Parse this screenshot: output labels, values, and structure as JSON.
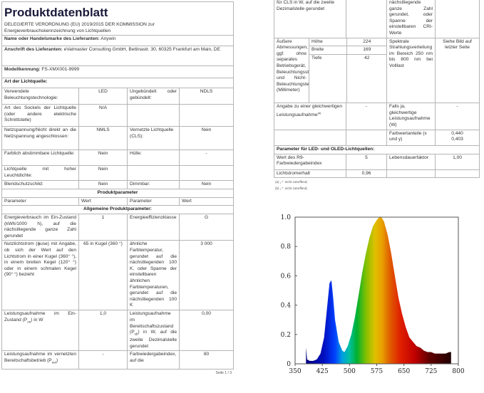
{
  "title": "Produktdatenblatt",
  "regulation": "DELEGIERTE VERORDNUNG (EU) 2019/2015 DER KOMMISSION zur Energieverbrauchskennzeichnung von Lichtquellen",
  "supplier_name_label": "Name oder Handelsmarke des Lieferanten:",
  "supplier_name": "Anywin",
  "address_label": "Anschrift des Lieferanten:",
  "address": "eVatmaster Consulting GmbH, Bettinastr. 30, 60325 Frankfurt am Main, DE",
  "model_label": "Modellkennung:",
  "model": "FS-XMX001-9999",
  "type_label": "Art der Lichtquelle:",
  "type_rows": [
    {
      "p1": "Verwendete Beleuchtungstechnologie:",
      "v1": "LED",
      "p2": "Ungebündelt oder gebündelt:",
      "v2": "NDLS"
    },
    {
      "p1": "Art des Sockels der Lichtquelle (oder andere elektrische Schnittstelle)",
      "v1": "N/A",
      "p2": "",
      "v2": ""
    },
    {
      "p1": "Netzspannung/Nicht direkt an die Netzspannung angeschlossen:",
      "v1": "NMLS",
      "p2": "Vernetzte Lichtquelle (CLS):",
      "v2": "Nein"
    },
    {
      "p1": "Farblich abstimmbare Lichtquelle:",
      "v1": "Nein",
      "p2": "Hülle:",
      "v2": "-"
    },
    {
      "p1": "Lichtquelle mit hoher Leuchtdichte:",
      "v1": "Nein",
      "p2": "",
      "v2": ""
    },
    {
      "p1": "Blendschutzschild:",
      "v1": "Nein",
      "p2": "Dimmbar:",
      "v2": "Nein"
    }
  ],
  "product_params_heading": "Produktparameter",
  "col_headers": [
    "Parameter",
    "Wert",
    "Parameter",
    "Wert"
  ],
  "general_heading": "Allgemeine Produktparameter:",
  "general_rows": [
    {
      "p1": "Energieverbrauch im Ein-Zustand (kWh/1000 h), auf die nächstliegende ganze Zahl gerundet",
      "v1": "1",
      "p2": "Energieeffizienzklasse",
      "v2": "G"
    },
    {
      "p1": "Nutzlichtstrom (ϕuse) mit Angabe, ob sich der Wert auf den Lichtstrom in einer Kugel (360° °), in einem breiten Kegel (120° °) oder in einem schmalen Kegel (90° °) bezieht",
      "v1": "65 in Kugel (360 °)",
      "p2": "ähnliche Farbtemperatur, gerundet auf die nächstliegenden 100 K, oder Spanne der einstellbaren ähnlichen Farbtemperaturen, gerundet auf die nächstliegenden 100 K",
      "v2": "3 000"
    },
    {
      "p1": "Leistungsaufnahme im Ein-Zustand (Pon) in W",
      "v1": "1,0",
      "p2": "Leistungsaufnahme im Bereitschaftszustand (Psb) in W, auf die zweite Dezimalstelle gerundet",
      "v2": "0,00"
    },
    {
      "p1": "Leistungsaufnahme im vernetzten Bereitschaftsbetrieb (Pnet)",
      "v1": "-",
      "p2": "Farbwiedergabeindex, auf die",
      "v2": "80"
    }
  ],
  "page_number": "Seite 1 / 3",
  "right": {
    "top_row": {
      "p1": "für CLS in W, auf die zweite Dezimalstelle gerundet",
      "p2": "nächstliegende ganze Zahl gerundet, oder Spanne der einstellbaren CRI-Werte"
    },
    "dims_label": "Äußere Abmessungen, ggf. ohne separates Betriebsgerät, Beleuchtungssteuerungsteile und Nicht-Beleuchtungsteile (Millimeter)",
    "dims": [
      {
        "k": "Höhe",
        "v": "224"
      },
      {
        "k": "Breite",
        "v": "169"
      },
      {
        "k": "Tiefe",
        "v": "42"
      }
    ],
    "spectral_label": "Spektrale Strahlungsverteilung im Bereich 250 nm bis 800 nm bei Volllast",
    "spectral_value": "Siehe Bild auf letzter Seite",
    "equiv_label": "Angabe zu einer gleichwertigen Leistungsaufnahme(a)",
    "equiv_value": "-",
    "equiv_power_label": "Falls ja, gleichwertige Leistungsaufnahme (W)",
    "equiv_power_value": "-",
    "chroma_label": "Farbwertanteile (x und y)",
    "chroma_x": "0,440",
    "chroma_y": "0,403",
    "led_heading": "Parameter für LED- und OLED-Lichtquellen:",
    "r9_label": "Wert des R9-Farbwiedergabeindex",
    "r9_value": "5",
    "life_label": "Lebensdauerfaktor",
    "life_value": "1,00",
    "maint_label": "Lichtstromerhalt",
    "maint_value": "0,96",
    "footnote_a": "(a) „-“: nicht zutreffend;",
    "footnote_b": "(b) „-“: nicht zutreffend;"
  },
  "chart_data": {
    "type": "area",
    "xlim": [
      350,
      800
    ],
    "ylim": [
      0,
      1.0
    ],
    "xticks": [
      "350",
      "425",
      "500",
      "575",
      "650",
      "725",
      "800"
    ],
    "yticks": [
      "0",
      "0.2",
      "0.4",
      "0.6",
      "0.8",
      "1.0"
    ],
    "x": [
      380,
      383,
      390,
      400,
      410,
      420,
      430,
      438,
      445,
      450,
      455,
      460,
      470,
      480,
      486,
      495,
      505,
      515,
      525,
      535,
      545,
      555,
      565,
      575,
      582,
      588,
      595,
      605,
      615,
      625,
      635,
      645,
      655,
      665,
      675,
      685,
      695,
      705,
      715,
      725,
      735,
      745,
      755,
      765,
      775,
      780
    ],
    "y": [
      0.11,
      0.03,
      0.02,
      0.02,
      0.03,
      0.07,
      0.18,
      0.38,
      0.55,
      0.57,
      0.45,
      0.3,
      0.15,
      0.09,
      0.08,
      0.12,
      0.2,
      0.32,
      0.47,
      0.62,
      0.75,
      0.86,
      0.94,
      0.98,
      1.0,
      1.0,
      0.97,
      0.88,
      0.75,
      0.6,
      0.45,
      0.34,
      0.25,
      0.18,
      0.15,
      0.12,
      0.11,
      0.09,
      0.08,
      0.08,
      0.07,
      0.07,
      0.07,
      0.07,
      0.08,
      0.08
    ],
    "grid": false
  }
}
